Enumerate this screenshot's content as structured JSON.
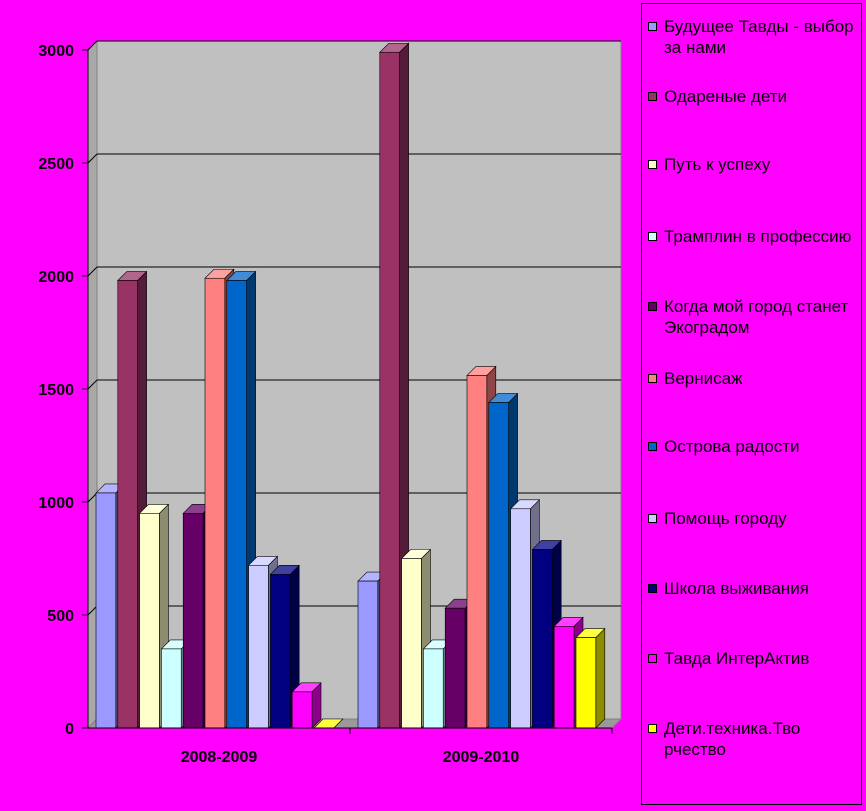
{
  "chart_data": {
    "type": "bar",
    "categories": [
      "2008-2009",
      "2009-2010"
    ],
    "ylim": [
      0,
      3000
    ],
    "yticks": [
      0,
      500,
      1000,
      1500,
      2000,
      2500,
      3000
    ],
    "grid": true,
    "legend_position": "right",
    "series": [
      {
        "name": "Будущее Тавды - выбор за нами",
        "color": "#9999ff",
        "values": [
          1040,
          650
        ]
      },
      {
        "name": "Одареные дети",
        "color": "#993366",
        "values": [
          1980,
          2990
        ]
      },
      {
        "name": "Путь к успеху",
        "color": "#ffffcc",
        "values": [
          950,
          750
        ]
      },
      {
        "name": "Трамплин в профессию",
        "color": "#ccffff",
        "values": [
          350,
          350
        ]
      },
      {
        "name": "Когда мой город станет Экоградом",
        "color": "#660066",
        "values": [
          950,
          530
        ]
      },
      {
        "name": "Вернисаж",
        "color": "#ff8080",
        "values": [
          1990,
          1560
        ]
      },
      {
        "name": "Острова радости",
        "color": "#0066cc",
        "values": [
          1980,
          1440
        ]
      },
      {
        "name": "Помощь городу",
        "color": "#ccccff",
        "values": [
          720,
          970
        ]
      },
      {
        "name": "Школа выживания",
        "color": "#000080",
        "values": [
          680,
          790
        ]
      },
      {
        "name": "Тавда ИнтерАктив",
        "color": "#ff00ff",
        "values": [
          160,
          450
        ]
      },
      {
        "name": "Дети.техника.Тво рчество",
        "color": "#ffff00",
        "values": [
          0,
          400
        ]
      }
    ]
  }
}
